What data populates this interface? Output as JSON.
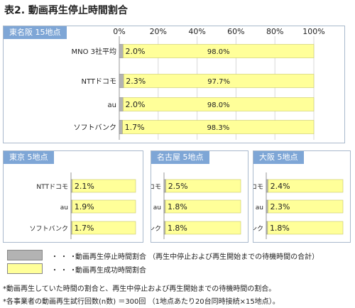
{
  "title": "表2. 動画再生停止時間割合",
  "colors": {
    "stop": "#b3b3b3",
    "success": "#ffff99",
    "header": "#7ea6d6"
  },
  "chart_data": [
    {
      "type": "bar",
      "stacked": true,
      "orientation": "horizontal",
      "title": "東名阪 15地点",
      "xlim": [
        0,
        100
      ],
      "xticks": [
        "0%",
        "20%",
        "40%",
        "60%",
        "80%",
        "100%"
      ],
      "categories": [
        "MNO 3社平均",
        "NTTドコモ",
        "au",
        "ソフトバンク"
      ],
      "series": [
        {
          "name": "動画再生停止時間割合",
          "values": [
            2.0,
            2.3,
            2.0,
            1.7
          ],
          "labels": [
            "2.0%",
            "2.3%",
            "2.0%",
            "1.7%"
          ]
        },
        {
          "name": "動画再生成功時間割合",
          "values": [
            98.0,
            97.7,
            98.0,
            98.3
          ],
          "labels": [
            "98.0%",
            "97.7%",
            "98.0%",
            "98.3%"
          ]
        }
      ]
    },
    {
      "type": "bar",
      "stacked": true,
      "orientation": "horizontal",
      "title": "東京 5地点",
      "xlim": [
        0,
        100
      ],
      "categories": [
        "NTTドコモ",
        "au",
        "ソフトバンク"
      ],
      "series": [
        {
          "name": "動画再生停止時間割合",
          "values": [
            2.1,
            1.9,
            1.7
          ],
          "labels": [
            "2.1%",
            "1.9%",
            "1.7%"
          ]
        },
        {
          "name": "動画再生成功時間割合",
          "values": [
            97.9,
            98.1,
            98.3
          ],
          "labels": [
            "",
            "",
            ""
          ]
        }
      ]
    },
    {
      "type": "bar",
      "stacked": true,
      "orientation": "horizontal",
      "title": "名古屋 5地点",
      "xlim": [
        0,
        100
      ],
      "categories": [
        "NTTドコモ",
        "au",
        "ソフトバンク"
      ],
      "series": [
        {
          "name": "動画再生停止時間割合",
          "values": [
            2.5,
            1.8,
            1.8
          ],
          "labels": [
            "2.5%",
            "1.8%",
            "1.8%"
          ]
        },
        {
          "name": "動画再生成功時間割合",
          "values": [
            97.5,
            98.2,
            98.2
          ],
          "labels": [
            "",
            "",
            ""
          ]
        }
      ]
    },
    {
      "type": "bar",
      "stacked": true,
      "orientation": "horizontal",
      "title": "大阪 5地点",
      "xlim": [
        0,
        100
      ],
      "categories": [
        "NTTドコモ",
        "au",
        "ソフトバンク"
      ],
      "series": [
        {
          "name": "動画再生停止時間割合",
          "values": [
            2.4,
            2.3,
            1.8
          ],
          "labels": [
            "2.4%",
            "2.3%",
            "1.8%"
          ]
        },
        {
          "name": "動画再生成功時間割合",
          "values": [
            97.6,
            97.7,
            98.2
          ],
          "labels": [
            "",
            "",
            ""
          ]
        }
      ]
    }
  ],
  "legend": {
    "dots": "・・・",
    "items": [
      {
        "label": "動画再生停止時間割合 （再生中停止および再生開始までの待機時間の合計）"
      },
      {
        "label": "動画再生成功時間割合"
      }
    ]
  },
  "notes": [
    "*動画再生していた時間の割合と、再生中停止および再生開始までの待機時間の割合。",
    "*各事業者の動画再生試行回数(n数) ＝300回 （1地点あたり20台同時接続×15地点）。"
  ]
}
